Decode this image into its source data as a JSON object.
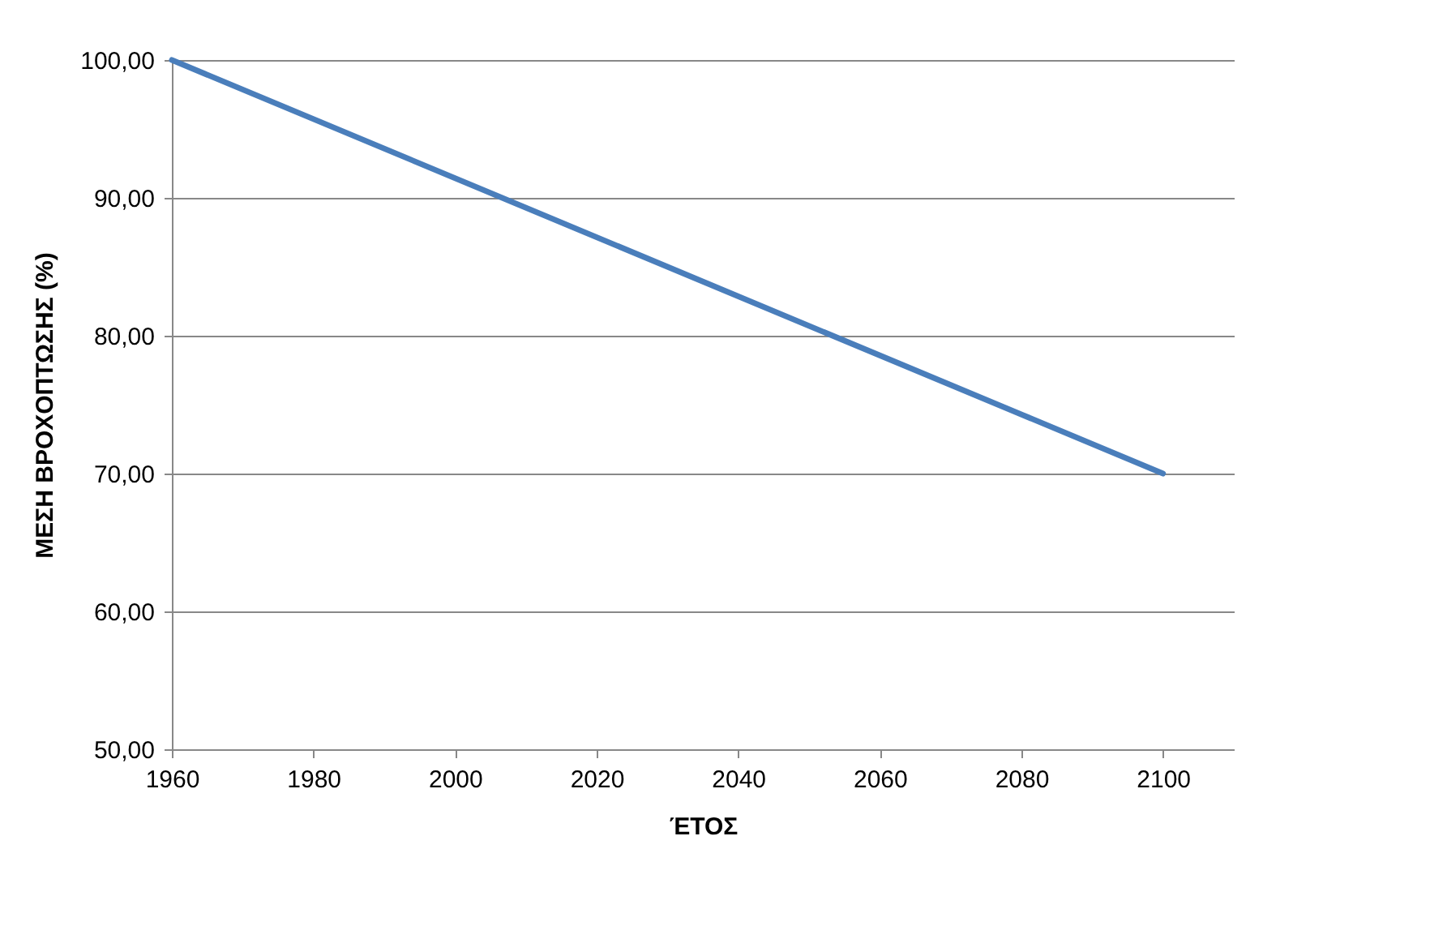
{
  "chart_data": {
    "type": "line",
    "xlabel": "ΈΤΟΣ",
    "ylabel": "ΜΕΣΗ ΒΡΟΧΟΠΤΩΣΗΣ (%)",
    "x": [
      1960,
      2100
    ],
    "series": [
      {
        "color": "#4a7ebb",
        "values": [
          100,
          70
        ]
      }
    ],
    "xlim": [
      1960,
      2110
    ],
    "xticks": [
      1960,
      1980,
      2000,
      2020,
      2040,
      2060,
      2080,
      2100
    ],
    "ylim": [
      50,
      100
    ],
    "yticks": [
      {
        "value": 50,
        "label": "50,00"
      },
      {
        "value": 60,
        "label": "60,00"
      },
      {
        "value": 70,
        "label": "70,00"
      },
      {
        "value": 80,
        "label": "80,00"
      },
      {
        "value": 90,
        "label": "90,00"
      },
      {
        "value": 100,
        "label": "100,00"
      }
    ],
    "grid": "y",
    "marker": "none",
    "line_style": "solid"
  }
}
